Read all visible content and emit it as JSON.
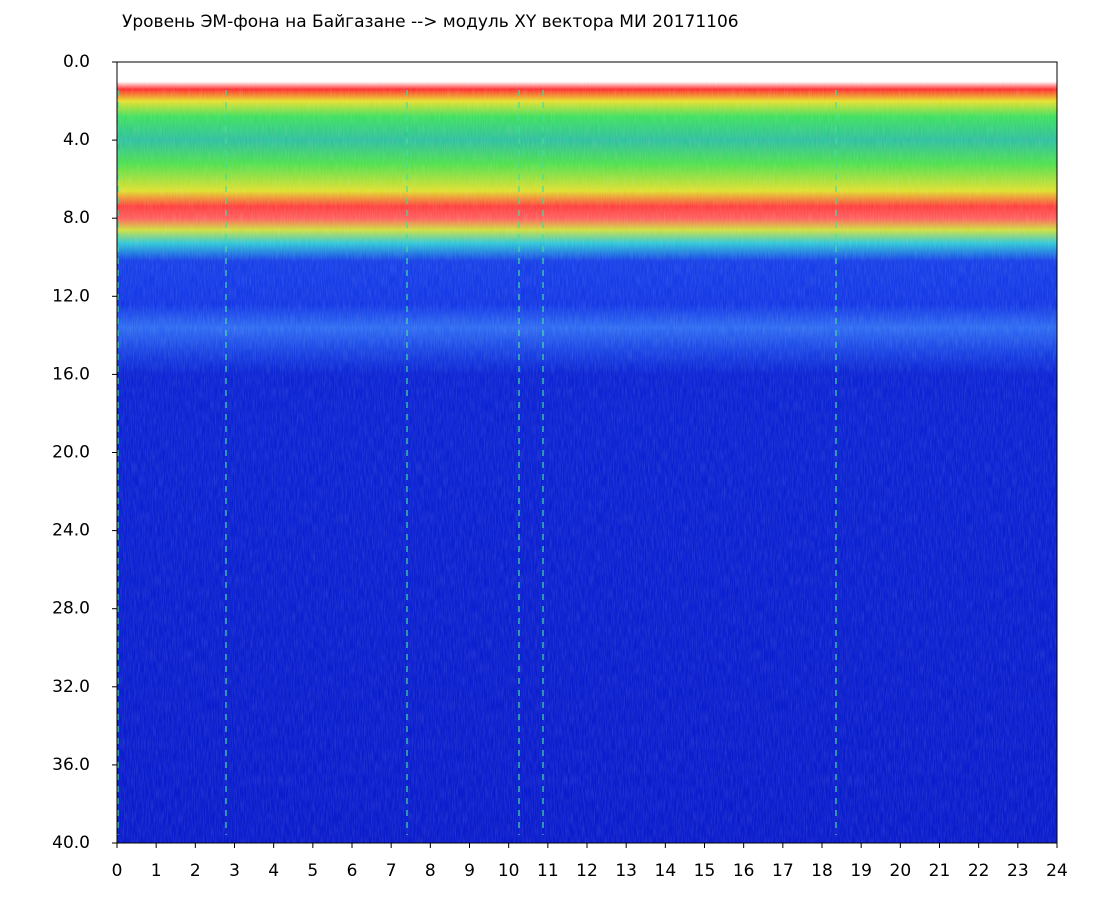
{
  "chart_data": {
    "type": "heatmap",
    "title": "Уровень ЭМ-фона на Байгазане  -->  модуль XY вектора МИ  20171106",
    "xlim": [
      0,
      24
    ],
    "xticks": [
      0,
      1,
      2,
      3,
      4,
      5,
      6,
      7,
      8,
      9,
      10,
      11,
      12,
      13,
      14,
      15,
      16,
      17,
      18,
      19,
      20,
      21,
      22,
      23,
      24
    ],
    "ylim": [
      0,
      40
    ],
    "yticks": [
      {
        "value": 0,
        "label": "0.0"
      },
      {
        "value": 4,
        "label": "4.0"
      },
      {
        "value": 8,
        "label": "8.0"
      },
      {
        "value": 12,
        "label": "12.0"
      },
      {
        "value": 16,
        "label": "16.0"
      },
      {
        "value": 20,
        "label": "20.0"
      },
      {
        "value": 24,
        "label": "24.0"
      },
      {
        "value": 28,
        "label": "28.0"
      },
      {
        "value": 32,
        "label": "32.0"
      },
      {
        "value": 36,
        "label": "36.0"
      },
      {
        "value": 40,
        "label": "40.0"
      }
    ]
  }
}
